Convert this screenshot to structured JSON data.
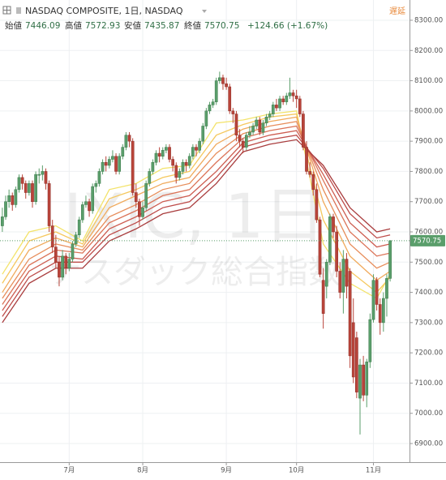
{
  "chart_data": {
    "type": "candlestick",
    "symbol": "NASDAQ COMPOSITE, 1日, NASDAQ",
    "delay_label": "遅延",
    "ohlc_labels": [
      "始値",
      "高値",
      "安値",
      "終値"
    ],
    "change": "+124.66 (+1.67%)",
    "watermark": "IXIC, 1日",
    "watermark_sub": "ナスダック総合指数",
    "up_color": "#5a9e6b",
    "down_color": "#b9443a",
    "ohlc": [
      [
        7620,
        7680,
        7600,
        7650
      ],
      [
        7650,
        7720,
        7640,
        7700
      ],
      [
        7700,
        7740,
        7680,
        7720
      ],
      [
        7720,
        7730,
        7670,
        7690
      ],
      [
        7690,
        7750,
        7680,
        7740
      ],
      [
        7740,
        7790,
        7730,
        7780
      ],
      [
        7780,
        7790,
        7740,
        7760
      ],
      [
        7760,
        7770,
        7710,
        7730
      ],
      [
        7730,
        7770,
        7720,
        7760
      ],
      [
        7760,
        7770,
        7680,
        7700
      ],
      [
        7700,
        7800,
        7690,
        7790
      ],
      [
        7790,
        7810,
        7760,
        7790
      ],
      [
        7790,
        7820,
        7770,
        7800
      ],
      [
        7800,
        7810,
        7740,
        7760
      ],
      [
        7760,
        7770,
        7600,
        7620
      ],
      [
        7620,
        7640,
        7530,
        7550
      ],
      [
        7550,
        7590,
        7480,
        7500
      ],
      [
        7500,
        7520,
        7420,
        7450
      ],
      [
        7450,
        7540,
        7440,
        7520
      ],
      [
        7520,
        7530,
        7460,
        7480
      ],
      [
        7480,
        7530,
        7470,
        7510
      ],
      [
        7510,
        7570,
        7500,
        7560
      ],
      [
        7560,
        7600,
        7550,
        7590
      ],
      [
        7590,
        7650,
        7580,
        7640
      ],
      [
        7640,
        7700,
        7630,
        7690
      ],
      [
        7690,
        7720,
        7680,
        7700
      ],
      [
        7700,
        7710,
        7650,
        7670
      ],
      [
        7670,
        7760,
        7660,
        7750
      ],
      [
        7750,
        7770,
        7730,
        7760
      ],
      [
        7760,
        7810,
        7750,
        7800
      ],
      [
        7800,
        7840,
        7790,
        7830
      ],
      [
        7830,
        7850,
        7800,
        7820
      ],
      [
        7820,
        7850,
        7810,
        7840
      ],
      [
        7840,
        7870,
        7830,
        7850
      ],
      [
        7850,
        7860,
        7790,
        7800
      ],
      [
        7800,
        7860,
        7790,
        7850
      ],
      [
        7850,
        7890,
        7840,
        7880
      ],
      [
        7880,
        7930,
        7870,
        7920
      ],
      [
        7920,
        7930,
        7880,
        7900
      ],
      [
        7900,
        7910,
        7720,
        7730
      ],
      [
        7730,
        7760,
        7680,
        7700
      ],
      [
        7700,
        7710,
        7620,
        7650
      ],
      [
        7650,
        7700,
        7640,
        7680
      ],
      [
        7680,
        7770,
        7670,
        7760
      ],
      [
        7760,
        7810,
        7750,
        7800
      ],
      [
        7800,
        7840,
        7790,
        7830
      ],
      [
        7830,
        7870,
        7820,
        7860
      ],
      [
        7860,
        7880,
        7830,
        7850
      ],
      [
        7850,
        7880,
        7840,
        7870
      ],
      [
        7870,
        7890,
        7860,
        7880
      ],
      [
        7880,
        7890,
        7830,
        7840
      ],
      [
        7840,
        7850,
        7800,
        7820
      ],
      [
        7820,
        7830,
        7760,
        7780
      ],
      [
        7780,
        7810,
        7770,
        7800
      ],
      [
        7800,
        7840,
        7790,
        7830
      ],
      [
        7830,
        7840,
        7800,
        7820
      ],
      [
        7820,
        7860,
        7810,
        7850
      ],
      [
        7850,
        7890,
        7840,
        7880
      ],
      [
        7880,
        7890,
        7850,
        7870
      ],
      [
        7870,
        7910,
        7860,
        7900
      ],
      [
        7900,
        7960,
        7890,
        7950
      ],
      [
        7950,
        8010,
        7940,
        8000
      ],
      [
        8000,
        8030,
        7990,
        8020
      ],
      [
        8020,
        8040,
        8010,
        8030
      ],
      [
        8030,
        8110,
        8020,
        8100
      ],
      [
        8100,
        8130,
        8090,
        8110
      ],
      [
        8110,
        8120,
        8070,
        8090
      ],
      [
        8090,
        8110,
        8070,
        8080
      ],
      [
        8080,
        8090,
        7990,
        8000
      ],
      [
        8000,
        8010,
        7960,
        7990
      ],
      [
        7990,
        8000,
        7900,
        7920
      ],
      [
        7920,
        7940,
        7880,
        7900
      ],
      [
        7900,
        7910,
        7860,
        7880
      ],
      [
        7880,
        7930,
        7870,
        7920
      ],
      [
        7920,
        7950,
        7910,
        7930
      ],
      [
        7930,
        7960,
        7920,
        7950
      ],
      [
        7950,
        7980,
        7940,
        7970
      ],
      [
        7970,
        7980,
        7920,
        7930
      ],
      [
        7930,
        7970,
        7920,
        7960
      ],
      [
        7960,
        7990,
        7950,
        7980
      ],
      [
        7980,
        8000,
        7970,
        7990
      ],
      [
        7990,
        8030,
        7980,
        8020
      ],
      [
        8020,
        8040,
        8000,
        8010
      ],
      [
        8010,
        8050,
        8000,
        8040
      ],
      [
        8040,
        8050,
        8020,
        8030
      ],
      [
        8030,
        8060,
        8020,
        8050
      ],
      [
        8050,
        8110,
        8040,
        8060
      ],
      [
        8060,
        8070,
        8030,
        8050
      ],
      [
        8050,
        8070,
        8010,
        8040
      ],
      [
        8040,
        8050,
        7980,
        7990
      ],
      [
        7990,
        8000,
        7870,
        7880
      ],
      [
        7880,
        7900,
        7790,
        7800
      ],
      [
        7800,
        7830,
        7780,
        7790
      ],
      [
        7790,
        7800,
        7720,
        7740
      ],
      [
        7740,
        7760,
        7630,
        7640
      ],
      [
        7640,
        7650,
        7450,
        7460
      ],
      [
        7440,
        7480,
        7280,
        7330
      ],
      [
        7420,
        7510,
        7380,
        7500
      ],
      [
        7500,
        7660,
        7490,
        7650
      ],
      [
        7650,
        7660,
        7580,
        7600
      ],
      [
        7600,
        7620,
        7450,
        7470
      ],
      [
        7470,
        7500,
        7380,
        7400
      ],
      [
        7400,
        7540,
        7330,
        7510
      ],
      [
        7510,
        7530,
        7380,
        7420
      ],
      [
        7470,
        7480,
        7150,
        7190
      ],
      [
        7300,
        7380,
        7100,
        7120
      ],
      [
        7250,
        7270,
        7050,
        7070
      ],
      [
        7050,
        7180,
        6930,
        7160
      ],
      [
        7160,
        7190,
        7040,
        7060
      ],
      [
        7060,
        7180,
        7020,
        7170
      ],
      [
        7170,
        7330,
        7150,
        7310
      ],
      [
        7310,
        7460,
        7300,
        7440
      ],
      [
        7440,
        7450,
        7340,
        7360
      ],
      [
        7360,
        7380,
        7260,
        7300
      ],
      [
        7300,
        7400,
        7270,
        7380
      ],
      [
        7380,
        7460,
        7320,
        7446.09
      ],
      [
        7446.09,
        7572.93,
        7435.87,
        7570.75
      ]
    ],
    "ma_x": [
      0,
      8,
      16,
      24,
      32,
      40,
      48,
      56,
      64,
      72,
      80,
      88,
      96,
      104,
      112,
      116
    ],
    "ma_series": [
      {
        "color": "#f3e36b",
        "values": [
          7460,
          7600,
          7620,
          7570,
          7740,
          7760,
          7810,
          7820,
          7960,
          7970,
          7990,
          8000,
          7560,
          7430,
          7380,
          7460
        ]
      },
      {
        "color": "#f5c85e",
        "values": [
          7430,
          7570,
          7600,
          7560,
          7710,
          7740,
          7780,
          7800,
          7920,
          7955,
          7980,
          7990,
          7640,
          7470,
          7400,
          7450
        ]
      },
      {
        "color": "#f0aa5c",
        "values": [
          7400,
          7540,
          7580,
          7550,
          7680,
          7720,
          7760,
          7780,
          7890,
          7940,
          7965,
          7980,
          7700,
          7520,
          7440,
          7470
        ]
      },
      {
        "color": "#e78d5a",
        "values": [
          7380,
          7510,
          7560,
          7540,
          7650,
          7690,
          7740,
          7760,
          7860,
          7925,
          7950,
          7965,
          7740,
          7560,
          7480,
          7500
        ]
      },
      {
        "color": "#db7357",
        "values": [
          7360,
          7490,
          7540,
          7530,
          7630,
          7670,
          7720,
          7740,
          7830,
          7910,
          7935,
          7950,
          7770,
          7600,
          7520,
          7530
        ]
      },
      {
        "color": "#cd5d51",
        "values": [
          7340,
          7470,
          7520,
          7510,
          7610,
          7650,
          7700,
          7720,
          7800,
          7895,
          7920,
          7935,
          7790,
          7630,
          7550,
          7560
        ]
      },
      {
        "color": "#bd4b49",
        "values": [
          7320,
          7450,
          7500,
          7500,
          7590,
          7630,
          7680,
          7700,
          7780,
          7880,
          7905,
          7920,
          7810,
          7660,
          7580,
          7590
        ]
      },
      {
        "color": "#a93d3e",
        "values": [
          7300,
          7430,
          7480,
          7480,
          7570,
          7610,
          7660,
          7680,
          7760,
          7865,
          7890,
          7905,
          7820,
          7680,
          7600,
          7610
        ]
      }
    ],
    "xlim": [
      -0.7,
      121.8
    ],
    "xticks": [
      {
        "value": 20,
        "label": "7月"
      },
      {
        "value": 42,
        "label": "8月"
      },
      {
        "value": 67,
        "label": "9月"
      },
      {
        "value": 88,
        "label": "10月"
      },
      {
        "value": 111,
        "label": "11月"
      }
    ],
    "ylim": [
      6838.4,
      8367
    ],
    "yticks": [
      {
        "value": 6900,
        "label": "6900.00"
      },
      {
        "value": 7000,
        "label": "7000.00"
      },
      {
        "value": 7100,
        "label": "7100.00"
      },
      {
        "value": 7200,
        "label": "7200.00"
      },
      {
        "value": 7300,
        "label": "7300.00"
      },
      {
        "value": 7400,
        "label": "7400.00"
      },
      {
        "value": 7500,
        "label": "7500.00"
      },
      {
        "value": 7600,
        "label": "7600.00"
      },
      {
        "value": 7700,
        "label": "7700.00"
      },
      {
        "value": 7800,
        "label": "7800.00"
      },
      {
        "value": 7900,
        "label": "7900.00"
      },
      {
        "value": 8000,
        "label": "8000.00"
      },
      {
        "value": 8100,
        "label": "8100.00"
      },
      {
        "value": 8200,
        "label": "8200.00"
      },
      {
        "value": 8300,
        "label": "8300.00"
      }
    ],
    "grid": true
  }
}
